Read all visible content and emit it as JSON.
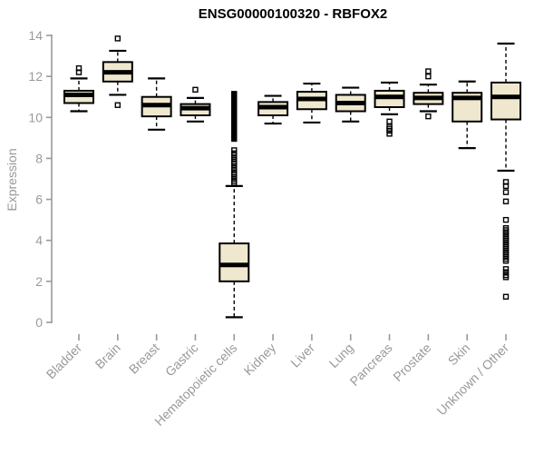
{
  "chart_data": {
    "type": "boxplot",
    "title": "ENSG00000100320 - RBFOX2",
    "ylabel": "Expression",
    "ylim": [
      0,
      14
    ],
    "yticks": [
      0,
      2,
      4,
      6,
      8,
      10,
      12,
      14
    ],
    "grid": false,
    "categories": [
      "Bladder",
      "Brain",
      "Breast",
      "Gastric",
      "Hematopoietic cells",
      "Kidney",
      "Liver",
      "Lung",
      "Pancreas",
      "Prostate",
      "Skin",
      "Unknown / Other"
    ],
    "series": [
      {
        "name": "Bladder",
        "low": 10.3,
        "q1": 10.7,
        "median": 11.1,
        "q3": 11.3,
        "high": 11.9,
        "outliers": [
          12.2,
          12.4
        ]
      },
      {
        "name": "Brain",
        "low": 11.1,
        "q1": 11.75,
        "median": 12.2,
        "q3": 12.7,
        "high": 13.25,
        "outliers": [
          13.85,
          10.6
        ]
      },
      {
        "name": "Breast",
        "low": 9.4,
        "q1": 10.05,
        "median": 10.6,
        "q3": 11.0,
        "high": 11.9,
        "outliers": []
      },
      {
        "name": "Gastric",
        "low": 9.8,
        "q1": 10.1,
        "median": 10.45,
        "q3": 10.65,
        "high": 10.95,
        "outliers": [
          11.35
        ]
      },
      {
        "name": "Hematopoietic cells",
        "low": 0.25,
        "q1": 2.0,
        "median": 2.8,
        "q3": 3.85,
        "high": 6.65,
        "outliers": [
          6.8,
          6.9,
          7.0,
          7.1,
          7.2,
          7.3,
          7.45,
          7.6,
          7.75,
          7.85,
          7.95,
          8.05,
          8.15,
          8.25,
          8.4,
          8.95,
          9.0,
          9.05,
          9.1,
          9.15,
          9.2,
          9.25,
          9.3,
          9.35,
          9.4,
          9.45,
          9.5,
          9.55,
          9.6,
          9.65,
          9.7,
          9.75,
          9.8,
          9.85,
          9.9,
          9.95,
          10.0,
          10.05,
          10.1,
          10.15,
          10.2,
          10.25,
          10.3,
          10.35,
          10.4,
          10.45,
          10.5,
          10.55,
          10.6,
          10.65,
          10.7,
          10.75,
          10.8,
          10.85,
          10.9,
          10.95,
          11.0,
          11.05,
          11.1,
          11.15
        ]
      },
      {
        "name": "Kidney",
        "low": 9.7,
        "q1": 10.1,
        "median": 10.5,
        "q3": 10.75,
        "high": 11.05,
        "outliers": []
      },
      {
        "name": "Liver",
        "low": 9.75,
        "q1": 10.4,
        "median": 10.9,
        "q3": 11.25,
        "high": 11.65,
        "outliers": []
      },
      {
        "name": "Lung",
        "low": 9.8,
        "q1": 10.3,
        "median": 10.7,
        "q3": 11.1,
        "high": 11.45,
        "outliers": []
      },
      {
        "name": "Pancreas",
        "low": 10.15,
        "q1": 10.5,
        "median": 11.0,
        "q3": 11.3,
        "high": 11.7,
        "outliers": [
          9.8,
          9.55,
          9.45,
          9.35,
          9.2
        ]
      },
      {
        "name": "Prostate",
        "low": 10.3,
        "q1": 10.65,
        "median": 10.95,
        "q3": 11.2,
        "high": 11.6,
        "outliers": [
          12.25,
          12.0,
          10.05
        ]
      },
      {
        "name": "Skin",
        "low": 8.5,
        "q1": 9.8,
        "median": 10.95,
        "q3": 11.2,
        "high": 11.75,
        "outliers": []
      },
      {
        "name": "Unknown / Other",
        "low": 7.4,
        "q1": 9.9,
        "median": 11.0,
        "q3": 11.7,
        "high": 13.6,
        "outliers": [
          6.85,
          6.65,
          6.35,
          5.9,
          5.0,
          4.6,
          4.5,
          4.4,
          4.3,
          4.2,
          4.1,
          4.0,
          3.9,
          3.8,
          3.7,
          3.6,
          3.5,
          3.4,
          3.3,
          3.2,
          3.1,
          3.0,
          2.6,
          2.45,
          2.3,
          2.2,
          1.25
        ]
      }
    ],
    "styles": {
      "box_fill": "#F0E8CE",
      "line_color": "#000000",
      "axis_color": "#999999",
      "title_color": "#000000"
    }
  }
}
